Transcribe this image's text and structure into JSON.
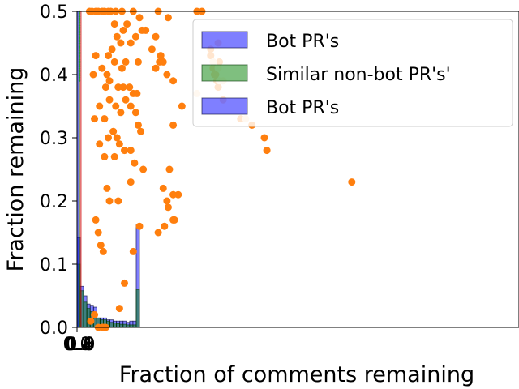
{
  "chart_data": {
    "type": "bar",
    "title": "",
    "xlabel": "Fraction of comments remaining",
    "ylabel": "Fraction remaining",
    "ylim": [
      0,
      0.5
    ],
    "yticks": [
      "0.0",
      "0.1",
      "0.2",
      "0.3",
      "0.4",
      "0.5"
    ],
    "xticks": [
      "0.0",
      "0.2",
      "0.4",
      "0.6",
      "0.8",
      "1.0"
    ],
    "grid": false,
    "legend_position": "top-right",
    "colors": {
      "bot": "#0000ff",
      "similar": "#008000",
      "scatter": "#ff7f0e",
      "scatter_light": "#ffd9b3"
    },
    "legend": [
      "Bot PR's",
      "Similar non-bot PR's'",
      "Bot PR's"
    ],
    "histogram": {
      "bin_edges": [
        0.0,
        0.0526,
        0.1053,
        0.1579,
        0.2105,
        0.2632,
        0.3158,
        0.3684,
        0.4211,
        0.4737,
        0.5263,
        0.5789,
        0.6316,
        0.6842,
        0.7368,
        0.7895,
        0.8421,
        0.8947,
        0.9474,
        1.0
      ],
      "series": [
        {
          "name": "Bot PR's",
          "values": [
            0.142,
            0.065,
            0.05,
            0.037,
            0.035,
            0.032,
            0.015,
            0.015,
            0.015,
            0.012,
            0.012,
            0.01,
            0.01,
            0.01,
            0.01,
            0.008,
            0.01,
            0.01,
            0.162
          ]
        },
        {
          "name": "Similar non-bot PR's'",
          "values": [
            0.1,
            0.058,
            0.04,
            0.03,
            0.025,
            0.022,
            0.015,
            0.012,
            0.012,
            0.01,
            0.008,
            0.007,
            0.006,
            0.005,
            0.005,
            0.004,
            0.004,
            0.004,
            0.06
          ]
        }
      ]
    },
    "scatter": {
      "points": [
        [
          0.1,
          0.5
        ],
        [
          0.12,
          0.5
        ],
        [
          0.15,
          0.5
        ],
        [
          0.17,
          0.5
        ],
        [
          0.2,
          0.5
        ],
        [
          0.22,
          0.5
        ],
        [
          0.25,
          0.5
        ],
        [
          0.27,
          0.5
        ],
        [
          0.31,
          0.5
        ],
        [
          0.36,
          0.5
        ],
        [
          0.45,
          0.5
        ],
        [
          0.65,
          0.5
        ],
        [
          0.73,
          0.49
        ],
        [
          0.3,
          0.48
        ],
        [
          0.5,
          0.49
        ],
        [
          0.55,
          0.47
        ],
        [
          0.35,
          0.45
        ],
        [
          0.43,
          0.45
        ],
        [
          0.47,
          0.46
        ],
        [
          0.52,
          0.47
        ],
        [
          0.6,
          0.44
        ],
        [
          0.63,
          0.46
        ],
        [
          0.28,
          0.44
        ],
        [
          0.32,
          0.46
        ],
        [
          0.37,
          0.47
        ],
        [
          0.4,
          0.48
        ],
        [
          0.13,
          0.4
        ],
        [
          0.25,
          0.43
        ],
        [
          0.24,
          0.4
        ],
        [
          0.3,
          0.42
        ],
        [
          0.36,
          0.41
        ],
        [
          0.39,
          0.42
        ],
        [
          0.49,
          0.42
        ],
        [
          0.66,
          0.42
        ],
        [
          0.69,
          0.42
        ],
        [
          0.63,
          0.41
        ],
        [
          0.67,
          0.43
        ],
        [
          0.72,
          0.4
        ],
        [
          0.77,
          0.39
        ],
        [
          0.15,
          0.43
        ],
        [
          0.2,
          0.41
        ],
        [
          0.23,
          0.38
        ],
        [
          0.26,
          0.39
        ],
        [
          0.33,
          0.38
        ],
        [
          0.37,
          0.38
        ],
        [
          0.42,
          0.38
        ],
        [
          0.45,
          0.37
        ],
        [
          0.48,
          0.37
        ],
        [
          0.18,
          0.35
        ],
        [
          0.26,
          0.36
        ],
        [
          0.31,
          0.35
        ],
        [
          0.35,
          0.34
        ],
        [
          0.39,
          0.36
        ],
        [
          0.43,
          0.35
        ],
        [
          0.14,
          0.33
        ],
        [
          0.22,
          0.33
        ],
        [
          0.47,
          0.34
        ],
        [
          0.49,
          0.32
        ],
        [
          0.51,
          0.31
        ],
        [
          0.77,
          0.32
        ],
        [
          0.84,
          0.35
        ],
        [
          0.29,
          0.31
        ],
        [
          0.32,
          0.3
        ],
        [
          0.18,
          0.29
        ],
        [
          0.25,
          0.3
        ],
        [
          0.34,
          0.29
        ],
        [
          0.38,
          0.28
        ],
        [
          0.43,
          0.28
        ],
        [
          0.22,
          0.27
        ],
        [
          0.3,
          0.27
        ],
        [
          0.46,
          0.26
        ],
        [
          0.53,
          0.25
        ],
        [
          0.43,
          0.23
        ],
        [
          0.74,
          0.25
        ],
        [
          0.81,
          0.21
        ],
        [
          0.24,
          0.22
        ],
        [
          0.26,
          0.2
        ],
        [
          0.33,
          0.2
        ],
        [
          0.69,
          0.22
        ],
        [
          0.72,
          0.2
        ],
        [
          0.77,
          0.21
        ],
        [
          0.73,
          0.19
        ],
        [
          0.78,
          0.17
        ],
        [
          0.7,
          0.16
        ],
        [
          0.65,
          0.15
        ],
        [
          0.15,
          0.17
        ],
        [
          0.5,
          0.16
        ],
        [
          0.77,
          0.17
        ],
        [
          0.17,
          0.15
        ],
        [
          0.19,
          0.13
        ],
        [
          0.21,
          0.12
        ],
        [
          0.45,
          0.12
        ],
        [
          0.38,
          0.07
        ],
        [
          0.34,
          0.03
        ],
        [
          0.11,
          0.01
        ],
        [
          0.14,
          0.02
        ],
        [
          0.17,
          0.0
        ],
        [
          0.21,
          0.0
        ],
        [
          0.23,
          0.0
        ],
        [
          0.2,
          0.0
        ],
        [
          0.96,
          0.51
        ],
        [
          1.0,
          0.5
        ],
        [
          1.07,
          0.43
        ],
        [
          1.13,
          0.45
        ],
        [
          1.14,
          0.42
        ],
        [
          1.07,
          0.44
        ],
        [
          1.1,
          0.4
        ],
        [
          1.12,
          0.39
        ],
        [
          1.17,
          0.36
        ],
        [
          1.31,
          0.33
        ],
        [
          1.4,
          0.32
        ],
        [
          1.5,
          0.3
        ],
        [
          1.52,
          0.28
        ],
        [
          1.09,
          0.41
        ],
        [
          1.11,
          0.4
        ],
        [
          1.13,
          0.38
        ]
      ],
      "light_points": [
        [
          0.96,
          0.37
        ],
        [
          1.09,
          0.42
        ],
        [
          1.14,
          0.39
        ],
        [
          1.13,
          0.41
        ],
        [
          1.17,
          0.39
        ],
        [
          1.35,
          0.33
        ]
      ],
      "outlier": [
        2.0,
        0.23
      ]
    }
  }
}
